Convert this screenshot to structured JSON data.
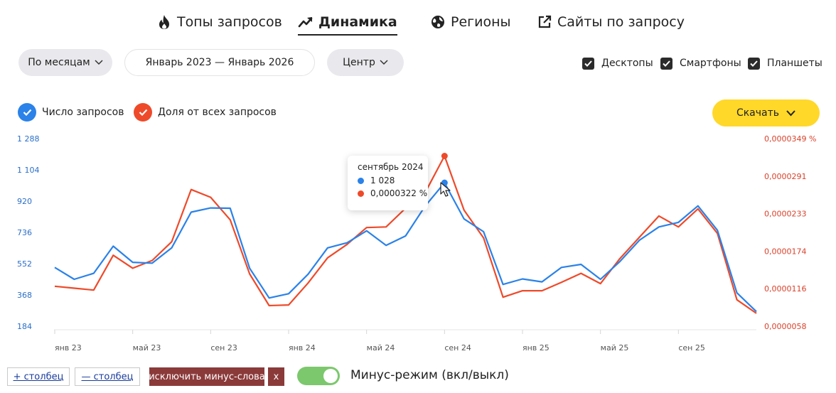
{
  "tabs": [
    {
      "label": "Топы запросов",
      "icon": "flame-icon"
    },
    {
      "label": "Динамика",
      "icon": "trend-icon",
      "active": true
    },
    {
      "label": "Регионы",
      "icon": "globe-icon"
    },
    {
      "label": "Сайты по запросу",
      "icon": "external-link-icon"
    }
  ],
  "filters": {
    "period": "По месяцам",
    "range": "Январь 2023 — Январь 2026",
    "region": "Центр"
  },
  "devices": {
    "desktop": "Десктопы",
    "smartphone": "Смартфоны",
    "tablet": "Планшеты"
  },
  "legend": {
    "count": "Число запросов",
    "share": "Доля от всех запросов"
  },
  "download_label": "Скачать",
  "colors": {
    "blue": "#2b82e8",
    "red": "#ee4a2a",
    "accent": "#ffd829",
    "toggle": "#7cc86d"
  },
  "tooltip": {
    "title": "сентябрь 2024",
    "count": "1 028",
    "share": "0,0000322 %"
  },
  "chart_data": {
    "type": "line",
    "x_labels": [
      "янв 23",
      "май 23",
      "сен 23",
      "янв 24",
      "май 24",
      "сен 24",
      "янв 25",
      "май 25",
      "сен 25"
    ],
    "x": [
      "янв 23",
      "фев 23",
      "мар 23",
      "апр 23",
      "май 23",
      "июн 23",
      "июл 23",
      "авг 23",
      "сен 23",
      "окт 23",
      "ноя 23",
      "дек 23",
      "янв 24",
      "фев 24",
      "мар 24",
      "апр 24",
      "май 24",
      "июн 24",
      "июл 24",
      "авг 24",
      "сен 24",
      "окт 24",
      "ноя 24",
      "дек 24",
      "янв 25",
      "фев 25",
      "мар 25",
      "апр 25",
      "май 25",
      "июн 25",
      "июл 25",
      "авг 25",
      "сен 25",
      "окт 25",
      "ноя 25",
      "дек 25",
      "янв 26"
    ],
    "y_left_ticks": [
      "184",
      "368",
      "552",
      "736",
      "920",
      "1 104",
      "1 288"
    ],
    "y_right_ticks": [
      "0,0000058",
      "0,0000116",
      "0,0000174",
      "0,0000233",
      "0,0000291",
      "0,0000349 %"
    ],
    "y_left_range": [
      184,
      1288
    ],
    "y_right_range": [
      5.8e-06,
      3.49e-05
    ],
    "series": [
      {
        "name": "Число запросов",
        "axis": "left",
        "color": "#2b82e8",
        "values": [
          530,
          460,
          495,
          655,
          560,
          555,
          645,
          855,
          880,
          878,
          525,
          350,
          375,
          490,
          645,
          675,
          745,
          660,
          715,
          890,
          1028,
          815,
          740,
          430,
          462,
          445,
          530,
          548,
          460,
          565,
          690,
          768,
          795,
          892,
          748,
          380,
          270
        ]
      },
      {
        "name": "Доля от всех запросов",
        "axis": "right",
        "color": "#ee4a2a",
        "values": [
          1.2e-05,
          1.17e-05,
          1.14e-05,
          1.68e-05,
          1.48e-05,
          1.6e-05,
          1.89e-05,
          2.7e-05,
          2.58e-05,
          2.23e-05,
          1.39e-05,
          9e-06,
          9.1e-06,
          1.25e-05,
          1.64e-05,
          1.85e-05,
          2.11e-05,
          2.12e-05,
          2.41e-05,
          2.65e-05,
          3.22e-05,
          2.38e-05,
          1.95e-05,
          1.03e-05,
          1.13e-05,
          1.13e-05,
          1.26e-05,
          1.4e-05,
          1.24e-05,
          1.63e-05,
          1.96e-05,
          2.29e-05,
          2.12e-05,
          2.4e-05,
          2.02e-05,
          9.9e-06,
          7.8e-06
        ]
      }
    ],
    "grid": false,
    "highlight_index": 20
  },
  "bottom": {
    "add_column": "+ столбец",
    "remove_column": "— столбец",
    "exclude_minus": "исключить минус-слова",
    "close": "x",
    "minus_mode_label": "Минус-режим (вкл/выкл)"
  }
}
